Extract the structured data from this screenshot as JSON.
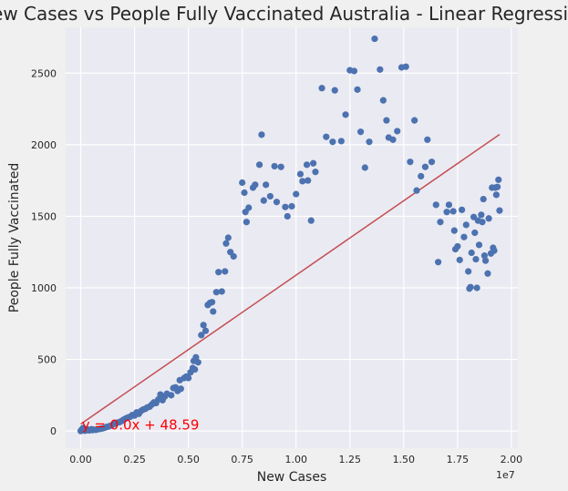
{
  "chart_data": {
    "type": "scatter",
    "title": "New Cases vs People Fully Vaccinated Australia - Linear Regression",
    "xlabel": "New Cases",
    "ylabel": "People Fully Vaccinated",
    "x_offset_label": "1e7",
    "xlim": [
      -700000,
      20300000
    ],
    "ylim": [
      -120,
      2820
    ],
    "xticks": [
      0,
      2500000,
      5000000,
      7500000,
      10000000,
      12500000,
      15000000,
      17500000,
      20000000
    ],
    "xtick_labels": [
      "0.00",
      "0.25",
      "0.50",
      "0.75",
      "1.00",
      "1.25",
      "1.50",
      "1.75",
      "2.00"
    ],
    "yticks": [
      0,
      500,
      1000,
      1500,
      2000,
      2500
    ],
    "ytick_labels": [
      "0",
      "500",
      "1000",
      "1500",
      "2000",
      "2500"
    ],
    "grid": true,
    "colors": {
      "points": "#4c72b0",
      "regression": "#c44e52",
      "annotation": "#ff0000",
      "plot_bg": "#eaeaf2"
    },
    "regression": {
      "slope": 0.000104,
      "intercept": 48.59
    },
    "annotation": {
      "text": "y = 0.0x + 48.59",
      "x": 50000,
      "y": 48.59
    },
    "points": [
      [
        0,
        0
      ],
      [
        20000,
        3
      ],
      [
        40000,
        6
      ],
      [
        60000,
        10
      ],
      [
        80000,
        14
      ],
      [
        100000,
        18
      ],
      [
        120000,
        22
      ],
      [
        150000,
        5
      ],
      [
        180000,
        8
      ],
      [
        200000,
        2
      ],
      [
        250000,
        4
      ],
      [
        300000,
        7
      ],
      [
        350000,
        10
      ],
      [
        400000,
        4
      ],
      [
        450000,
        8
      ],
      [
        500000,
        12
      ],
      [
        550000,
        6
      ],
      [
        600000,
        10
      ],
      [
        700000,
        8
      ],
      [
        800000,
        12
      ],
      [
        900000,
        15
      ],
      [
        1000000,
        18
      ],
      [
        1100000,
        22
      ],
      [
        1200000,
        28
      ],
      [
        1300000,
        32
      ],
      [
        1400000,
        38
      ],
      [
        1500000,
        45
      ],
      [
        1600000,
        52
      ],
      [
        1700000,
        58
      ],
      [
        1800000,
        62
      ],
      [
        1900000,
        70
      ],
      [
        2000000,
        80
      ],
      [
        2100000,
        88
      ],
      [
        2200000,
        95
      ],
      [
        2300000,
        100
      ],
      [
        2400000,
        112
      ],
      [
        2500000,
        108
      ],
      [
        2600000,
        130
      ],
      [
        2700000,
        120
      ],
      [
        2800000,
        140
      ],
      [
        2900000,
        150
      ],
      [
        3000000,
        155
      ],
      [
        3100000,
        165
      ],
      [
        3200000,
        170
      ],
      [
        3300000,
        185
      ],
      [
        3400000,
        200
      ],
      [
        3500000,
        195
      ],
      [
        3600000,
        220
      ],
      [
        3700000,
        255
      ],
      [
        3800000,
        215
      ],
      [
        3900000,
        240
      ],
      [
        4000000,
        260
      ],
      [
        4200000,
        250
      ],
      [
        4300000,
        300
      ],
      [
        4400000,
        305
      ],
      [
        4500000,
        280
      ],
      [
        4600000,
        355
      ],
      [
        4650000,
        295
      ],
      [
        4800000,
        370
      ],
      [
        4900000,
        380
      ],
      [
        5000000,
        370
      ],
      [
        5100000,
        410
      ],
      [
        5200000,
        440
      ],
      [
        5250000,
        490
      ],
      [
        5300000,
        430
      ],
      [
        5350000,
        515
      ],
      [
        5450000,
        480
      ],
      [
        5600000,
        670
      ],
      [
        5700000,
        740
      ],
      [
        5800000,
        700
      ],
      [
        5900000,
        880
      ],
      [
        6000000,
        895
      ],
      [
        6100000,
        900
      ],
      [
        6150000,
        835
      ],
      [
        6300000,
        970
      ],
      [
        6400000,
        1110
      ],
      [
        6550000,
        975
      ],
      [
        6700000,
        1115
      ],
      [
        6750000,
        1310
      ],
      [
        6850000,
        1350
      ],
      [
        6950000,
        1250
      ],
      [
        7100000,
        1220
      ],
      [
        7500000,
        1735
      ],
      [
        7600000,
        1665
      ],
      [
        7650000,
        1530
      ],
      [
        7700000,
        1460
      ],
      [
        7800000,
        1560
      ],
      [
        8000000,
        1700
      ],
      [
        8100000,
        1720
      ],
      [
        8300000,
        1860
      ],
      [
        8400000,
        2070
      ],
      [
        8500000,
        1610
      ],
      [
        8600000,
        1720
      ],
      [
        8800000,
        1640
      ],
      [
        9000000,
        1850
      ],
      [
        9100000,
        1600
      ],
      [
        9300000,
        1845
      ],
      [
        9500000,
        1565
      ],
      [
        9600000,
        1500
      ],
      [
        9800000,
        1570
      ],
      [
        10000000,
        1655
      ],
      [
        10200000,
        1795
      ],
      [
        10300000,
        1745
      ],
      [
        10500000,
        1860
      ],
      [
        10550000,
        1750
      ],
      [
        10700000,
        1470
      ],
      [
        10800000,
        1870
      ],
      [
        10900000,
        1810
      ],
      [
        11200000,
        2395
      ],
      [
        11400000,
        2055
      ],
      [
        11700000,
        2020
      ],
      [
        11800000,
        2380
      ],
      [
        12100000,
        2025
      ],
      [
        12300000,
        2210
      ],
      [
        12500000,
        2520
      ],
      [
        12700000,
        2515
      ],
      [
        12850000,
        2385
      ],
      [
        13000000,
        2090
      ],
      [
        13200000,
        1840
      ],
      [
        13400000,
        2020
      ],
      [
        13650000,
        2740
      ],
      [
        13900000,
        2525
      ],
      [
        14050000,
        2310
      ],
      [
        14200000,
        2170
      ],
      [
        14300000,
        2050
      ],
      [
        14500000,
        2035
      ],
      [
        14700000,
        2095
      ],
      [
        14900000,
        2540
      ],
      [
        15100000,
        2545
      ],
      [
        15300000,
        1880
      ],
      [
        15500000,
        2170
      ],
      [
        15600000,
        1680
      ],
      [
        15800000,
        1780
      ],
      [
        16000000,
        1845
      ],
      [
        16100000,
        2035
      ],
      [
        16300000,
        1880
      ],
      [
        16500000,
        1580
      ],
      [
        16600000,
        1180
      ],
      [
        16700000,
        1460
      ],
      [
        17000000,
        1530
      ],
      [
        17100000,
        1580
      ],
      [
        17300000,
        1535
      ],
      [
        17350000,
        1400
      ],
      [
        17400000,
        1270
      ],
      [
        17500000,
        1290
      ],
      [
        17600000,
        1195
      ],
      [
        17700000,
        1545
      ],
      [
        17800000,
        1355
      ],
      [
        17900000,
        1440
      ],
      [
        18000000,
        1115
      ],
      [
        18050000,
        995
      ],
      [
        18100000,
        1005
      ],
      [
        18150000,
        1245
      ],
      [
        18250000,
        1495
      ],
      [
        18300000,
        1385
      ],
      [
        18350000,
        1200
      ],
      [
        18400000,
        1000
      ],
      [
        18450000,
        1470
      ],
      [
        18500000,
        1300
      ],
      [
        18600000,
        1510
      ],
      [
        18650000,
        1460
      ],
      [
        18700000,
        1620
      ],
      [
        18750000,
        1225
      ],
      [
        18800000,
        1190
      ],
      [
        18900000,
        1100
      ],
      [
        18950000,
        1485
      ],
      [
        19050000,
        1240
      ],
      [
        19100000,
        1700
      ],
      [
        19150000,
        1280
      ],
      [
        19200000,
        1260
      ],
      [
        19250000,
        1700
      ],
      [
        19300000,
        1650
      ],
      [
        19350000,
        1705
      ],
      [
        19400000,
        1755
      ],
      [
        19450000,
        1540
      ]
    ]
  }
}
